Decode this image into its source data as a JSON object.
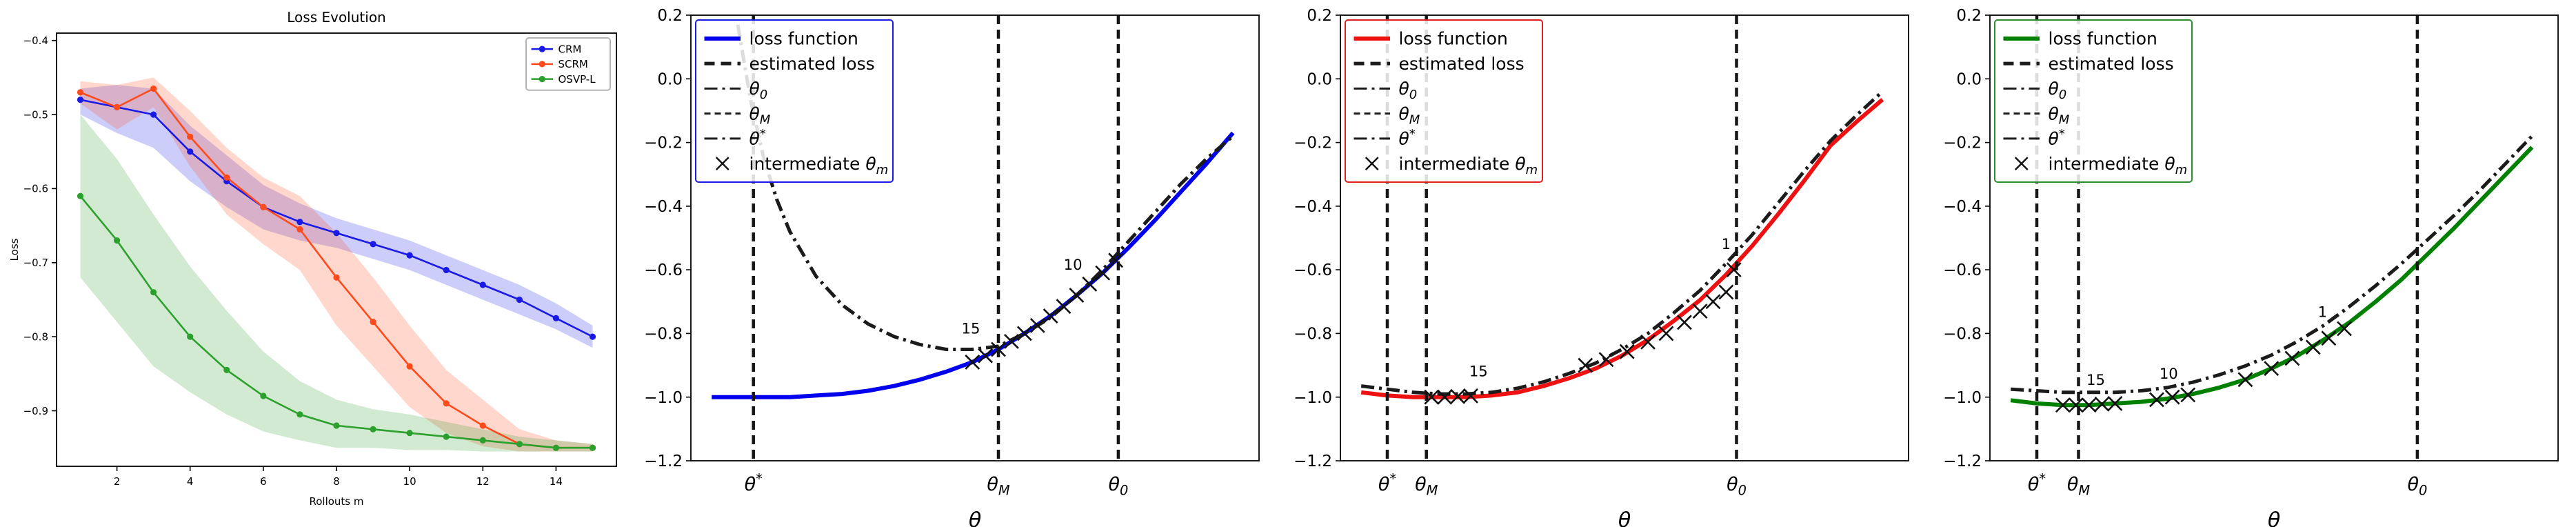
{
  "page": {
    "background": "#ffffff"
  },
  "chart_data": [
    {
      "type": "line",
      "title": "Loss Evolution",
      "xlabel": "Rollouts m",
      "ylabel": "Loss",
      "xlim": [
        0.35,
        15.65
      ],
      "ylim": [
        -0.975,
        -0.39
      ],
      "xticks": [
        2,
        4,
        6,
        8,
        10,
        12,
        14
      ],
      "yticks": [
        -0.4,
        -0.5,
        -0.6,
        -0.7,
        -0.8,
        -0.9
      ],
      "x": [
        1,
        2,
        3,
        4,
        5,
        6,
        7,
        8,
        9,
        10,
        11,
        12,
        13,
        14,
        15
      ],
      "grid": false,
      "legend": {
        "pos": "ne",
        "border": "#b3b3b3",
        "items": [
          {
            "label": "CRM",
            "color": "#1a1ae6",
            "dash": "solid",
            "lw": 2.6,
            "marker": "o"
          },
          {
            "label": "SCRM",
            "color": "#ff4a1c",
            "dash": "solid",
            "lw": 2.6,
            "marker": "o"
          },
          {
            "label": "OSVP-L",
            "color": "#2ca02c",
            "dash": "solid",
            "lw": 2.6,
            "marker": "o"
          }
        ]
      },
      "series": [
        {
          "name": "CRM",
          "color": "#1a1ae6",
          "marker": "o",
          "values": [
            -0.48,
            -0.49,
            -0.5,
            -0.55,
            -0.59,
            -0.625,
            -0.645,
            -0.66,
            -0.675,
            -0.69,
            -0.71,
            -0.73,
            -0.75,
            -0.775,
            -0.8
          ],
          "band_lower": [
            -0.5,
            -0.525,
            -0.545,
            -0.59,
            -0.625,
            -0.655,
            -0.67,
            -0.68,
            -0.695,
            -0.71,
            -0.73,
            -0.75,
            -0.77,
            -0.79,
            -0.815
          ],
          "band_upper": [
            -0.465,
            -0.46,
            -0.465,
            -0.515,
            -0.555,
            -0.595,
            -0.62,
            -0.64,
            -0.655,
            -0.67,
            -0.69,
            -0.71,
            -0.73,
            -0.755,
            -0.785
          ]
        },
        {
          "name": "SCRM",
          "color": "#ff4a1c",
          "marker": "o",
          "values": [
            -0.47,
            -0.49,
            -0.465,
            -0.53,
            -0.585,
            -0.625,
            -0.655,
            -0.72,
            -0.78,
            -0.84,
            -0.89,
            -0.92,
            -0.945,
            -0.95,
            -0.95
          ],
          "band_lower": [
            -0.485,
            -0.52,
            -0.49,
            -0.57,
            -0.635,
            -0.675,
            -0.71,
            -0.785,
            -0.84,
            -0.895,
            -0.93,
            -0.948,
            -0.955,
            -0.955,
            -0.955
          ],
          "band_upper": [
            -0.455,
            -0.46,
            -0.45,
            -0.495,
            -0.545,
            -0.585,
            -0.61,
            -0.66,
            -0.72,
            -0.785,
            -0.845,
            -0.885,
            -0.925,
            -0.94,
            -0.945
          ]
        },
        {
          "name": "OSVP-L",
          "color": "#2ca02c",
          "marker": "o",
          "values": [
            -0.61,
            -0.67,
            -0.74,
            -0.8,
            -0.845,
            -0.88,
            -0.905,
            -0.92,
            -0.925,
            -0.93,
            -0.935,
            -0.94,
            -0.945,
            -0.95,
            -0.95
          ],
          "band_lower": [
            -0.72,
            -0.78,
            -0.84,
            -0.875,
            -0.905,
            -0.928,
            -0.94,
            -0.95,
            -0.95,
            -0.953,
            -0.953,
            -0.955,
            -0.955,
            -0.955,
            -0.955
          ],
          "band_upper": [
            -0.5,
            -0.56,
            -0.635,
            -0.705,
            -0.765,
            -0.82,
            -0.86,
            -0.885,
            -0.898,
            -0.905,
            -0.915,
            -0.925,
            -0.935,
            -0.94,
            -0.945
          ]
        }
      ]
    },
    {
      "type": "line",
      "xlabel": "θ",
      "xlim": [
        -0.04,
        1.05
      ],
      "ylim": [
        -1.2,
        0.2
      ],
      "yticks": [
        0.2,
        0.0,
        -0.2,
        -0.4,
        -0.6,
        -0.8,
        -1.0,
        -1.2
      ],
      "x": [
        0,
        0.05,
        0.1,
        0.15,
        0.2,
        0.25,
        0.3,
        0.35,
        0.4,
        0.45,
        0.5,
        0.55,
        0.6,
        0.65,
        0.7,
        0.75,
        0.8,
        0.85,
        0.9,
        0.95,
        1.0
      ],
      "legend": {
        "pos": "nw",
        "border": "#1a1ae6",
        "items": [
          {
            "label": "loss function",
            "color": "#0000ee",
            "dash": "solid",
            "lw": 6
          },
          {
            "label": "estimated loss",
            "color": "#1b1b1b",
            "dash": "dashed",
            "lw": 5
          },
          {
            "label": "θ_0",
            "color": "#1b1b1b",
            "dash": "dashdot",
            "lw": 3
          },
          {
            "label": "θ_M",
            "color": "#1b1b1b",
            "dash": "dashed2",
            "lw": 3
          },
          {
            "label": "θ^*",
            "color": "#1b1b1b",
            "dash": "dashdot",
            "lw": 3
          },
          {
            "label": "intermediate θ_m",
            "type": "marker",
            "color": "#111111"
          }
        ]
      },
      "series": [
        {
          "name": "loss-function",
          "color": "#0000ee",
          "lw": 6,
          "dash": "solid",
          "values": [
            -1.0,
            -1.0,
            -1.0,
            -1.0,
            -0.995,
            -0.99,
            -0.98,
            -0.965,
            -0.945,
            -0.92,
            -0.89,
            -0.85,
            -0.8,
            -0.745,
            -0.68,
            -0.61,
            -0.53,
            -0.445,
            -0.355,
            -0.265,
            -0.17
          ]
        },
        {
          "name": "estimated-loss",
          "color": "#1b1b1b",
          "lw": 5,
          "dash": "dashdot",
          "x": [
            0.05,
            0.075,
            0.1,
            0.125,
            0.15,
            0.2,
            0.25,
            0.3,
            0.35,
            0.4,
            0.45,
            0.5,
            0.55,
            0.6,
            0.65,
            0.7,
            0.75,
            0.8,
            0.85,
            0.9,
            0.95,
            1.0
          ],
          "values": [
            0.17,
            -0.07,
            -0.25,
            -0.38,
            -0.48,
            -0.62,
            -0.71,
            -0.77,
            -0.81,
            -0.835,
            -0.85,
            -0.85,
            -0.84,
            -0.8,
            -0.75,
            -0.68,
            -0.6,
            -0.51,
            -0.42,
            -0.33,
            -0.25,
            -0.18
          ]
        }
      ],
      "vlines": [
        {
          "x": 0.08,
          "label": "θ^*"
        },
        {
          "x": 0.55,
          "label": "θ_M"
        },
        {
          "x": 0.78,
          "label": "θ_0"
        }
      ],
      "markers": [
        [
          0.5,
          -0.89
        ],
        [
          0.525,
          -0.87
        ],
        [
          0.55,
          -0.85
        ],
        [
          0.575,
          -0.825
        ],
        [
          0.6,
          -0.8
        ],
        [
          0.625,
          -0.775
        ],
        [
          0.65,
          -0.745
        ],
        [
          0.675,
          -0.715
        ],
        [
          0.7,
          -0.68
        ],
        [
          0.725,
          -0.645
        ],
        [
          0.75,
          -0.61
        ],
        [
          0.775,
          -0.57
        ]
      ],
      "annotations": [
        {
          "x": 0.497,
          "y": -0.8,
          "t": "15"
        },
        {
          "x": 0.693,
          "y": -0.6,
          "t": "10"
        }
      ]
    },
    {
      "type": "line",
      "xlabel": "θ",
      "xlim": [
        -0.04,
        1.05
      ],
      "ylim": [
        -1.2,
        0.2
      ],
      "yticks": [
        0.2,
        0.0,
        -0.2,
        -0.4,
        -0.6,
        -0.8,
        -1.0,
        -1.2
      ],
      "x": [
        0,
        0.05,
        0.1,
        0.15,
        0.2,
        0.25,
        0.3,
        0.35,
        0.4,
        0.45,
        0.5,
        0.55,
        0.6,
        0.65,
        0.7,
        0.75,
        0.8,
        0.85,
        0.9,
        0.95,
        1.0
      ],
      "legend": {
        "pos": "nw",
        "border": "#e02020",
        "items": [
          {
            "label": "loss function",
            "color": "#ee1111",
            "dash": "solid",
            "lw": 6
          },
          {
            "label": "estimated loss",
            "color": "#1b1b1b",
            "dash": "dashed",
            "lw": 5
          },
          {
            "label": "θ_0",
            "color": "#1b1b1b",
            "dash": "dashdot",
            "lw": 3
          },
          {
            "label": "θ_M",
            "color": "#1b1b1b",
            "dash": "dashed2",
            "lw": 3
          },
          {
            "label": "θ^*",
            "color": "#1b1b1b",
            "dash": "dashdot",
            "lw": 3
          },
          {
            "label": "intermediate θ_m",
            "type": "marker",
            "color": "#111111"
          }
        ]
      },
      "series": [
        {
          "name": "loss-function",
          "color": "#ee1111",
          "lw": 6,
          "dash": "solid",
          "values": [
            -0.985,
            -0.995,
            -1.0,
            -1.0,
            -1.0,
            -0.995,
            -0.985,
            -0.965,
            -0.94,
            -0.91,
            -0.87,
            -0.82,
            -0.76,
            -0.695,
            -0.615,
            -0.525,
            -0.425,
            -0.32,
            -0.21,
            -0.135,
            -0.065
          ]
        },
        {
          "name": "estimated-loss",
          "color": "#1b1b1b",
          "lw": 5,
          "dash": "dashdot",
          "values": [
            -0.965,
            -0.975,
            -0.985,
            -0.99,
            -0.99,
            -0.985,
            -0.972,
            -0.952,
            -0.925,
            -0.893,
            -0.85,
            -0.8,
            -0.735,
            -0.665,
            -0.58,
            -0.49,
            -0.39,
            -0.29,
            -0.195,
            -0.115,
            -0.04
          ]
        }
      ],
      "vlines": [
        {
          "x": 0.05,
          "label": "θ^*"
        },
        {
          "x": 0.125,
          "label": "θ_M"
        },
        {
          "x": 0.72,
          "label": "θ_0"
        }
      ],
      "markers": [
        [
          0.135,
          -1.0
        ],
        [
          0.16,
          -1.0
        ],
        [
          0.185,
          -0.998
        ],
        [
          0.21,
          -0.996
        ],
        [
          0.43,
          -0.9
        ],
        [
          0.47,
          -0.882
        ],
        [
          0.51,
          -0.857
        ],
        [
          0.55,
          -0.827
        ],
        [
          0.585,
          -0.8
        ],
        [
          0.62,
          -0.765
        ],
        [
          0.65,
          -0.73
        ],
        [
          0.675,
          -0.7
        ],
        [
          0.7,
          -0.67
        ],
        [
          0.715,
          -0.6
        ]
      ],
      "annotations": [
        {
          "x": 0.225,
          "y": -0.935,
          "t": "15"
        },
        {
          "x": 0.7,
          "y": -0.535,
          "t": "1"
        }
      ]
    },
    {
      "type": "line",
      "xlabel": "θ",
      "xlim": [
        -0.04,
        1.05
      ],
      "ylim": [
        -1.2,
        0.2
      ],
      "yticks": [
        0.2,
        0.0,
        -0.2,
        -0.4,
        -0.6,
        -0.8,
        -1.0,
        -1.2
      ],
      "x": [
        0,
        0.05,
        0.1,
        0.15,
        0.2,
        0.25,
        0.3,
        0.35,
        0.4,
        0.45,
        0.5,
        0.55,
        0.6,
        0.65,
        0.7,
        0.75,
        0.8,
        0.85,
        0.9,
        0.95,
        1.0
      ],
      "legend": {
        "pos": "nw",
        "border": "#2e8b2e",
        "items": [
          {
            "label": "loss function",
            "color": "#008000",
            "dash": "solid",
            "lw": 6
          },
          {
            "label": "estimated loss",
            "color": "#1b1b1b",
            "dash": "dashed",
            "lw": 5
          },
          {
            "label": "θ_0",
            "color": "#1b1b1b",
            "dash": "dashdot",
            "lw": 3
          },
          {
            "label": "θ_M",
            "color": "#1b1b1b",
            "dash": "dashed2",
            "lw": 3
          },
          {
            "label": "θ^*",
            "color": "#1b1b1b",
            "dash": "dashdot",
            "lw": 3
          },
          {
            "label": "intermediate θ_m",
            "type": "marker",
            "color": "#111111"
          }
        ]
      },
      "series": [
        {
          "name": "loss-function",
          "color": "#008000",
          "lw": 6,
          "dash": "solid",
          "values": [
            -1.01,
            -1.02,
            -1.025,
            -1.025,
            -1.02,
            -1.015,
            -1.005,
            -0.99,
            -0.97,
            -0.945,
            -0.91,
            -0.87,
            -0.82,
            -0.765,
            -0.7,
            -0.63,
            -0.55,
            -0.47,
            -0.385,
            -0.3,
            -0.215
          ]
        },
        {
          "name": "estimated-loss",
          "color": "#1b1b1b",
          "lw": 5,
          "dash": "dashdot",
          "values": [
            -0.975,
            -0.98,
            -0.985,
            -0.985,
            -0.985,
            -0.98,
            -0.97,
            -0.953,
            -0.93,
            -0.902,
            -0.868,
            -0.825,
            -0.775,
            -0.715,
            -0.65,
            -0.58,
            -0.505,
            -0.43,
            -0.35,
            -0.265,
            -0.18
          ]
        }
      ],
      "vlines": [
        {
          "x": 0.05,
          "label": "θ^*"
        },
        {
          "x": 0.13,
          "label": "θ_M"
        },
        {
          "x": 0.78,
          "label": "θ_0"
        }
      ],
      "markers": [
        [
          0.1,
          -1.025
        ],
        [
          0.125,
          -1.025
        ],
        [
          0.15,
          -1.025
        ],
        [
          0.175,
          -1.022
        ],
        [
          0.2,
          -1.02
        ],
        [
          0.28,
          -1.008
        ],
        [
          0.31,
          -1.0
        ],
        [
          0.34,
          -0.993
        ],
        [
          0.45,
          -0.945
        ],
        [
          0.5,
          -0.91
        ],
        [
          0.54,
          -0.878
        ],
        [
          0.58,
          -0.843
        ],
        [
          0.61,
          -0.815
        ],
        [
          0.64,
          -0.785
        ]
      ],
      "annotations": [
        {
          "x": 0.163,
          "y": -0.962,
          "t": "15"
        },
        {
          "x": 0.303,
          "y": -0.942,
          "t": "10"
        },
        {
          "x": 0.598,
          "y": -0.748,
          "t": "1"
        }
      ]
    }
  ]
}
